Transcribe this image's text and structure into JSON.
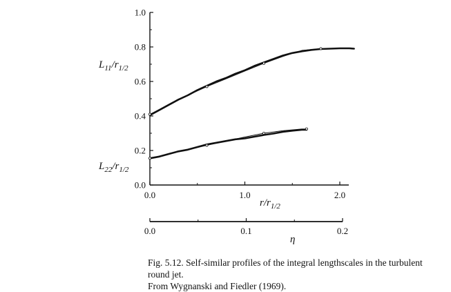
{
  "chart_data": {
    "type": "line",
    "main_x_axis": {
      "label_main": "r/r",
      "label_sub": "1/2",
      "range": [
        0.0,
        2.15
      ],
      "ticks": [
        0.0,
        1.0,
        2.0
      ],
      "tick_labels": [
        "0.0",
        "1.0",
        "2.0"
      ]
    },
    "secondary_x_axis": {
      "label": "η",
      "range": [
        0.0,
        0.2
      ],
      "ticks": [
        0.0,
        0.1,
        0.2
      ],
      "tick_labels": [
        "0.0",
        "0.1",
        "0.2"
      ]
    },
    "y_axis": {
      "range": [
        0.0,
        1.0
      ],
      "ticks": [
        0.0,
        0.2,
        0.4,
        0.6,
        0.8,
        1.0
      ],
      "tick_labels": [
        "0.0",
        "0.2",
        "0.4",
        "0.6",
        "0.8",
        "1.0"
      ]
    },
    "series": [
      {
        "name_main": "L",
        "name_sub1": "11",
        "name_mid": "/r",
        "name_sub2": "1/2",
        "style": "thick",
        "x": [
          0.0,
          0.1,
          0.2,
          0.3,
          0.4,
          0.5,
          0.6,
          0.7,
          0.8,
          0.9,
          1.0,
          1.1,
          1.2,
          1.3,
          1.4,
          1.5,
          1.6,
          1.7,
          1.8,
          1.9,
          2.0,
          2.1,
          2.15
        ],
        "y": [
          0.405,
          0.435,
          0.465,
          0.495,
          0.52,
          0.55,
          0.575,
          0.6,
          0.62,
          0.645,
          0.665,
          0.69,
          0.71,
          0.73,
          0.75,
          0.765,
          0.775,
          0.783,
          0.788,
          0.79,
          0.792,
          0.792,
          0.79
        ]
      },
      {
        "style": "thin",
        "x": [
          0.0,
          0.2,
          0.4,
          0.6,
          0.8,
          1.0,
          1.2,
          1.4,
          1.6,
          1.8,
          2.0,
          2.1
        ],
        "y": [
          0.41,
          0.465,
          0.52,
          0.57,
          0.615,
          0.66,
          0.705,
          0.745,
          0.78,
          0.79,
          0.79,
          0.79
        ]
      },
      {
        "name_main": "L",
        "name_sub1": "22",
        "name_mid": "/r",
        "name_sub2": "1/2",
        "style": "thick",
        "x": [
          0.0,
          0.1,
          0.2,
          0.3,
          0.4,
          0.5,
          0.6,
          0.7,
          0.8,
          0.9,
          1.0,
          1.1,
          1.2,
          1.3,
          1.4,
          1.5,
          1.6,
          1.65
        ],
        "y": [
          0.155,
          0.165,
          0.18,
          0.195,
          0.205,
          0.22,
          0.235,
          0.245,
          0.255,
          0.265,
          0.27,
          0.28,
          0.29,
          0.298,
          0.308,
          0.315,
          0.32,
          0.32
        ]
      },
      {
        "style": "thin",
        "x": [
          0.0,
          0.2,
          0.4,
          0.6,
          0.8,
          1.0,
          1.2,
          1.4,
          1.6,
          1.65
        ],
        "y": [
          0.155,
          0.18,
          0.205,
          0.23,
          0.255,
          0.278,
          0.3,
          0.315,
          0.325,
          0.325
        ]
      }
    ]
  },
  "caption": {
    "line1": "Fig. 5.12. Self-similar profiles of the integral lengthscales in the turbulent round jet.",
    "line2": "From Wygnanski and Fiedler (1969)."
  }
}
